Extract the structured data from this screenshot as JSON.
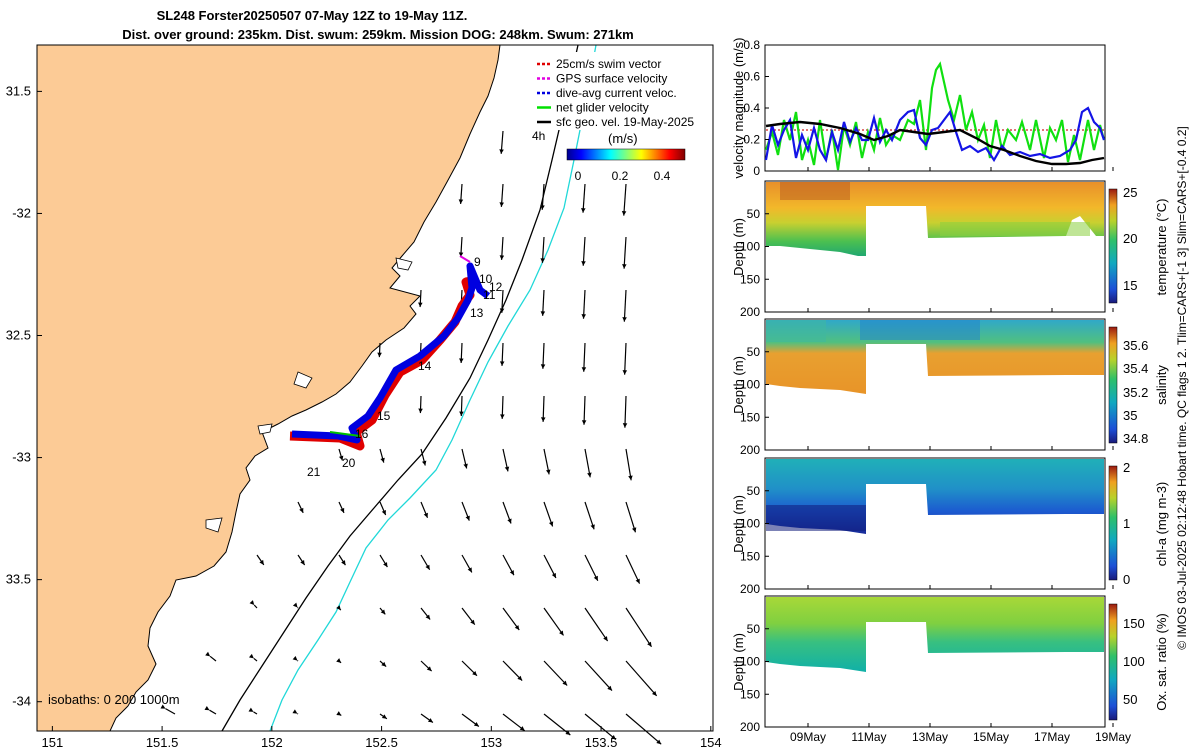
{
  "chart_data": {
    "type": "figure",
    "title_line1": "SL248 Forster20250507 07-May 12Z to 19-May 11Z.",
    "title_line2": "Dist. over ground: 235km. Dist. swum: 259km. Mission DOG: 248km. Swum: 271km",
    "map": {
      "x_ticks": [
        151,
        151.5,
        152,
        152.5,
        153,
        153.5,
        154
      ],
      "x_tick_labels": [
        "151",
        "151.5",
        "152",
        "152.5",
        "153",
        "153.5",
        "154"
      ],
      "y_ticks": [
        -31.5,
        -32,
        -32.5,
        -33,
        -33.5,
        -34
      ],
      "y_tick_labels": [
        "31.5",
        "-32",
        "32.5",
        "-33",
        "33.5",
        "-34"
      ],
      "xlim": [
        150.93,
        154.01
      ],
      "ylim": [
        -34.12,
        -31.31
      ],
      "legend": [
        {
          "label": "25cm/s swim vector",
          "color": "#e00000"
        },
        {
          "label": "GPS surface velocity",
          "color": "#e000e0"
        },
        {
          "label": "dive-avg current veloc.",
          "color": "#0000e0"
        },
        {
          "label": "net glider velocity",
          "color": "#00e000"
        },
        {
          "label": "sfc geo. vel. 19-May-2025",
          "color": "#000000"
        }
      ],
      "legend_extra": "4h",
      "colorbar_label": "(m/s)",
      "colorbar_ticks": [
        "0",
        "0.2",
        "0.4"
      ],
      "isobaths_label": "isobaths: 0 200 1000m",
      "track_day_labels": [
        "9",
        "10",
        "11",
        "12",
        "13",
        "14",
        "15",
        "16",
        "20",
        "21"
      ]
    },
    "velocity_panel": {
      "ylabel": "velocity magnitude (m/s)",
      "y_ticks": [
        "0",
        "0.2",
        "0.4",
        "0.6",
        "0.8"
      ],
      "ylim": [
        0,
        0.8
      ]
    },
    "section_panels": [
      {
        "cbar_label": "temperature (°C)",
        "cbar_ticks": [
          "15",
          "20",
          "25"
        ],
        "clim": [
          12,
          25
        ],
        "ylabel": "Depth (m)",
        "y_ticks": [
          "50",
          "100",
          "150",
          "200"
        ]
      },
      {
        "cbar_label": "salinity",
        "cbar_ticks": [
          "34.8",
          "35",
          "35.2",
          "35.4",
          "35.6"
        ],
        "clim": [
          34.7,
          35.75
        ],
        "ylabel": "Depth (m)",
        "y_ticks": [
          "50",
          "100",
          "150",
          "200"
        ]
      },
      {
        "cbar_label": "chl-a (mg m-3)",
        "cbar_ticks": [
          "0",
          "1",
          "2"
        ],
        "clim": [
          0,
          2
        ],
        "ylabel": "Depth (m)",
        "y_ticks": [
          "50",
          "100",
          "150",
          "200"
        ]
      },
      {
        "cbar_label": "Ox. sat. ratio (%)",
        "cbar_ticks": [
          "50",
          "100",
          "150"
        ],
        "clim": [
          20,
          175
        ],
        "ylabel": "Depth (m)",
        "y_ticks": [
          "50",
          "100",
          "150",
          "200"
        ]
      }
    ],
    "time_ticks": [
      "09May",
      "11May",
      "13May",
      "15May",
      "17May",
      "19May"
    ],
    "side_note": "© IMOS 03-Jul-2025 02:12:48 Hobart time. QC flags 1  2. Tlim=CARS+[-1 3] Slim=CARS+[-0.4 0.2]"
  }
}
